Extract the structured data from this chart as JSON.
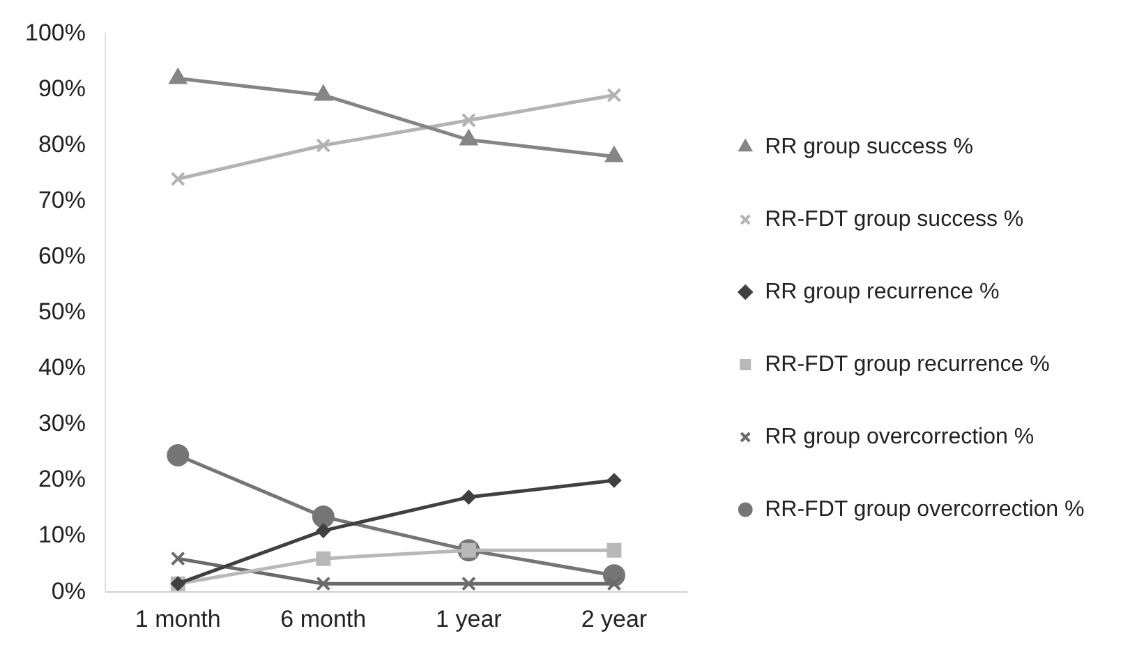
{
  "chart_data": {
    "type": "line",
    "categories": [
      "1 month",
      "6 month",
      "1 year",
      "2 year"
    ],
    "ylim": [
      0,
      100
    ],
    "yticks": [
      {
        "value": 0,
        "label": "0%"
      },
      {
        "value": 10,
        "label": "10%"
      },
      {
        "value": 20,
        "label": "20%"
      },
      {
        "value": 30,
        "label": "30%"
      },
      {
        "value": 40,
        "label": "40%"
      },
      {
        "value": 50,
        "label": "50%"
      },
      {
        "value": 60,
        "label": "60%"
      },
      {
        "value": 70,
        "label": "70%"
      },
      {
        "value": 80,
        "label": "80%"
      },
      {
        "value": 90,
        "label": "90%"
      },
      {
        "value": 100,
        "label": "100%"
      }
    ],
    "grid": false,
    "legend": "right",
    "line_style": "solid",
    "series": [
      {
        "name": "RR group success %",
        "color": "#858585",
        "marker": "triangle",
        "values": [
          92,
          89,
          81,
          78
        ]
      },
      {
        "name": "RR-FDT group success %",
        "color": "#b3b3b3",
        "marker": "cross",
        "values": [
          74,
          80,
          84.5,
          89
        ]
      },
      {
        "name": "RR group recurrence %",
        "color": "#404040",
        "marker": "diamond",
        "values": [
          1.5,
          11,
          17,
          20
        ]
      },
      {
        "name": "RR-FDT group recurrence %",
        "color": "#b8b8b8",
        "marker": "square",
        "values": [
          1.5,
          6,
          7.5,
          7.5
        ]
      },
      {
        "name": "RR group overcorrection %",
        "color": "#6a6a6a",
        "marker": "cross",
        "values": [
          6,
          1.5,
          1.5,
          1.5
        ]
      },
      {
        "name": "RR-FDT group overcorrection %",
        "color": "#757575",
        "marker": "circle",
        "values": [
          24.5,
          13.5,
          7.5,
          3
        ]
      }
    ]
  }
}
